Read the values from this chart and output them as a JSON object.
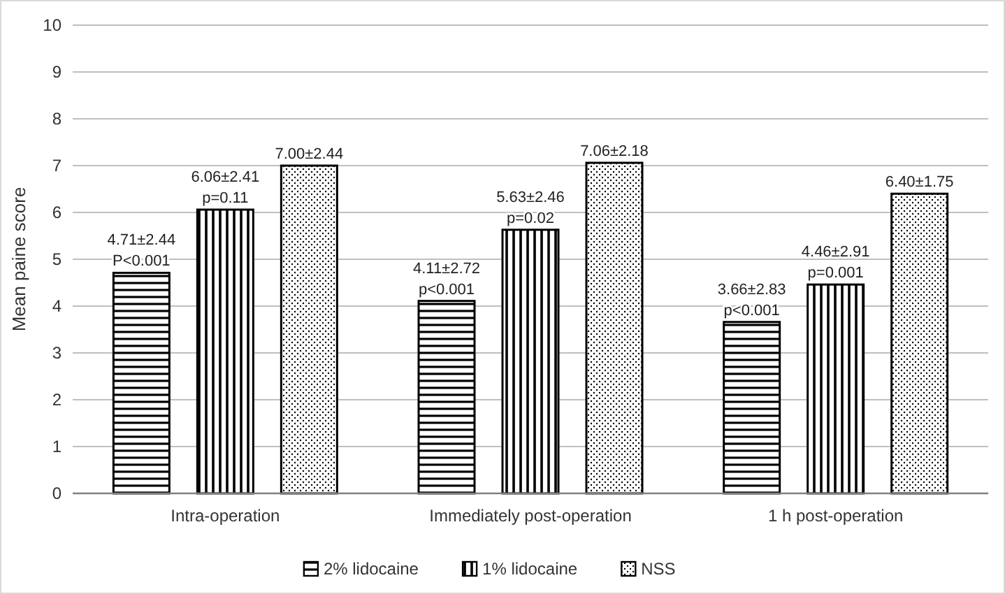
{
  "chart_data": {
    "type": "bar",
    "ylabel": "Mean paine score",
    "categories": [
      "Intra-operation",
      "Immediately post-operation",
      "1 h post-operation"
    ],
    "series": [
      {
        "name": "2% lidocaine",
        "color": "#000000",
        "values": [
          4.71,
          4.11,
          3.66
        ],
        "value_labels": [
          "4.71±2.44\nP<0.001",
          "4.11±2.72\np<0.001",
          "3.66±2.83\np<0.001"
        ]
      },
      {
        "name": "1% lidocaine",
        "color": "#000000",
        "values": [
          6.06,
          5.63,
          4.46
        ],
        "value_labels": [
          "6.06±2.41\np=0.11",
          "5.63±2.46\np=0.02",
          "4.46±2.91\np=0.001"
        ]
      },
      {
        "name": "NSS",
        "color": "#000000",
        "values": [
          7.0,
          7.06,
          6.4
        ],
        "value_labels": [
          "7.00±2.44",
          "7.06±2.18",
          "6.40±1.75"
        ]
      }
    ],
    "ylim": [
      0,
      10
    ],
    "yticks": [
      0,
      1,
      2,
      3,
      4,
      5,
      6,
      7,
      8,
      9,
      10
    ],
    "grid": "y",
    "legend": "bottom"
  }
}
